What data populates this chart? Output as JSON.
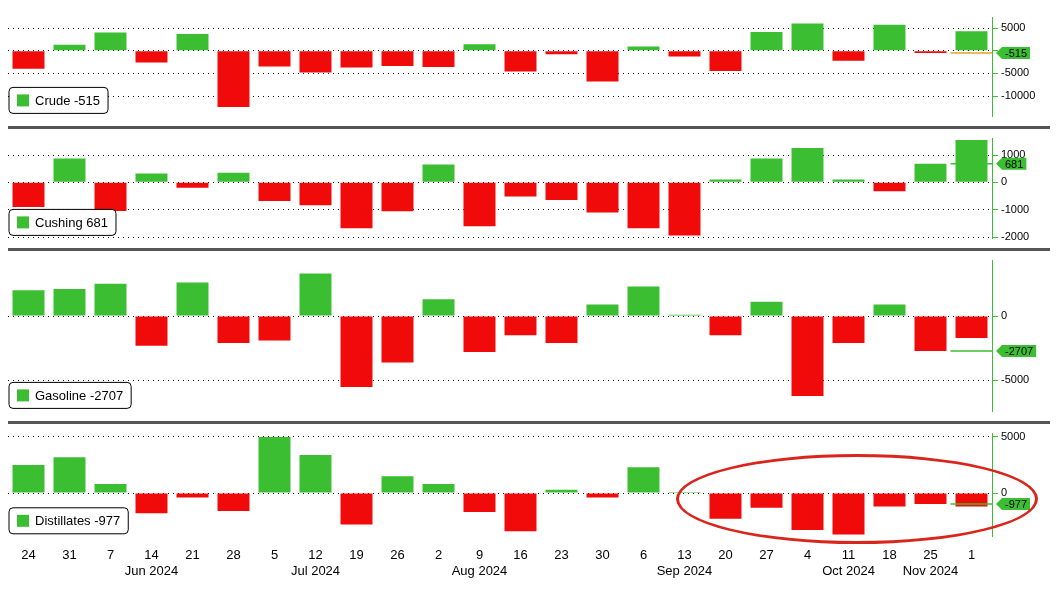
{
  "chart_data": [
    {
      "type": "bar",
      "series": [
        {
          "name": "Crude -515",
          "color": "#3cbe32",
          "values": [
            -4000,
            1300,
            4000,
            -2600,
            3700,
            -12400,
            -3500,
            -4800,
            -3700,
            -3400,
            -3600,
            1400,
            -4600,
            -800,
            -6800,
            900,
            -1300,
            -4500,
            4100,
            6000,
            -2200,
            5700,
            -515,
            4300
          ],
          "colors": [
            "#f00a0a",
            "#3cbe32",
            "#3cbe32",
            "#f00a0a",
            "#3cbe32",
            "#f00a0a",
            "#f00a0a",
            "#f00a0a",
            "#f00a0a",
            "#f00a0a",
            "#f00a0a",
            "#3cbe32",
            "#f00a0a",
            "#f00a0a",
            "#f00a0a",
            "#3cbe32",
            "#f00a0a",
            "#f00a0a",
            "#3cbe32",
            "#3cbe32",
            "#f00a0a",
            "#3cbe32",
            "#f00a0a",
            "#3cbe32"
          ]
        }
      ],
      "ylim": [
        -14500,
        7300
      ],
      "yticks": [
        -10000,
        -5000,
        {
          "value": 0,
          "label": null
        },
        5000
      ],
      "grid": "y",
      "legend": "bottom left",
      "tick_labels": "y",
      "ref_lines": [
        {
          "axis": "y",
          "value": -515,
          "label": "-515",
          "color": "#e0a030"
        }
      ]
    },
    {
      "type": "bar",
      "series": [
        {
          "name": "Cushing 681",
          "color": "#3cbe32",
          "values": [
            -900,
            870,
            -1050,
            320,
            -200,
            350,
            -680,
            -840,
            -1680,
            -1060,
            650,
            -1610,
            -520,
            -650,
            -1100,
            -1680,
            -1940,
            100,
            870,
            1260,
            100,
            -330,
            681,
            1550
          ],
          "colors": [
            "#f00a0a",
            "#3cbe32",
            "#f00a0a",
            "#3cbe32",
            "#f00a0a",
            "#3cbe32",
            "#f00a0a",
            "#f00a0a",
            "#f00a0a",
            "#f00a0a",
            "#3cbe32",
            "#f00a0a",
            "#f00a0a",
            "#f00a0a",
            "#f00a0a",
            "#f00a0a",
            "#f00a0a",
            "#3cbe32",
            "#3cbe32",
            "#3cbe32",
            "#3cbe32",
            "#f00a0a",
            "#3cbe32",
            "#3cbe32"
          ]
        }
      ],
      "ylim": [
        -2050,
        1600
      ],
      "yticks": [
        -2000,
        -1000,
        0,
        1000
      ],
      "grid": "y",
      "legend": "bottom left",
      "tick_labels": "y",
      "ref_lines": [
        {
          "axis": "y",
          "value": 681,
          "label": "681"
        }
      ]
    },
    {
      "type": "bar",
      "series": [
        {
          "name": "Gasoline -2707",
          "color": "#3cbe32",
          "values": [
            2000,
            2100,
            2500,
            -2300,
            2600,
            -2100,
            -1900,
            3300,
            -5500,
            -3600,
            1300,
            -2800,
            -1500,
            -2100,
            900,
            2300,
            100,
            -1500,
            1100,
            -6200,
            -2100,
            900,
            -2707,
            -1700
          ],
          "colors": [
            "#3cbe32",
            "#3cbe32",
            "#3cbe32",
            "#f00a0a",
            "#3cbe32",
            "#f00a0a",
            "#f00a0a",
            "#3cbe32",
            "#f00a0a",
            "#f00a0a",
            "#3cbe32",
            "#f00a0a",
            "#f00a0a",
            "#f00a0a",
            "#3cbe32",
            "#3cbe32",
            "#3cbe32",
            "#f00a0a",
            "#3cbe32",
            "#f00a0a",
            "#f00a0a",
            "#3cbe32",
            "#f00a0a",
            "#f00a0a"
          ]
        }
      ],
      "ylim": [
        -7400,
        4300
      ],
      "yticks": [
        -5000,
        0
      ],
      "grid": "y",
      "legend": "bottom left",
      "tick_labels": "y",
      "ref_lines": [
        {
          "axis": "y",
          "value": -2707,
          "label": "-2707"
        }
      ]
    },
    {
      "type": "bar",
      "categories": [
        "24",
        "31",
        "7",
        "14\nJun 2024",
        "21",
        "28",
        "5",
        "12\nJul 2024",
        "19",
        "26",
        "2",
        "9\nAug 2024",
        "16",
        "23",
        "30",
        "6",
        "13\nSep 2024",
        "20",
        "27",
        "4",
        "11\nOct 2024",
        "18",
        "25\nNov 2024",
        "1"
      ],
      "series": [
        {
          "name": "Distillates -977",
          "color": "#3cbe32",
          "values": [
            2500,
            3200,
            800,
            -1800,
            -400,
            -1600,
            5000,
            3400,
            -2800,
            1500,
            800,
            -1700,
            -3400,
            300,
            -400,
            2300,
            100,
            -2300,
            -1300,
            -3300,
            -3700,
            -1200,
            -977,
            -1200
          ],
          "colors": [
            "#3cbe32",
            "#3cbe32",
            "#3cbe32",
            "#f00a0a",
            "#f00a0a",
            "#f00a0a",
            "#3cbe32",
            "#3cbe32",
            "#f00a0a",
            "#3cbe32",
            "#3cbe32",
            "#f00a0a",
            "#f00a0a",
            "#3cbe32",
            "#f00a0a",
            "#3cbe32",
            "#3cbe32",
            "#f00a0a",
            "#f00a0a",
            "#f00a0a",
            "#f00a0a",
            "#f00a0a",
            "#f00a0a",
            "#f00a0a"
          ]
        }
      ],
      "ylim": [
        -3900,
        5300
      ],
      "yticks": [
        0,
        5000
      ],
      "grid": "y",
      "legend": "bottom left",
      "ref_lines": [
        {
          "axis": "y",
          "value": -977,
          "label": "-977"
        }
      ]
    }
  ]
}
